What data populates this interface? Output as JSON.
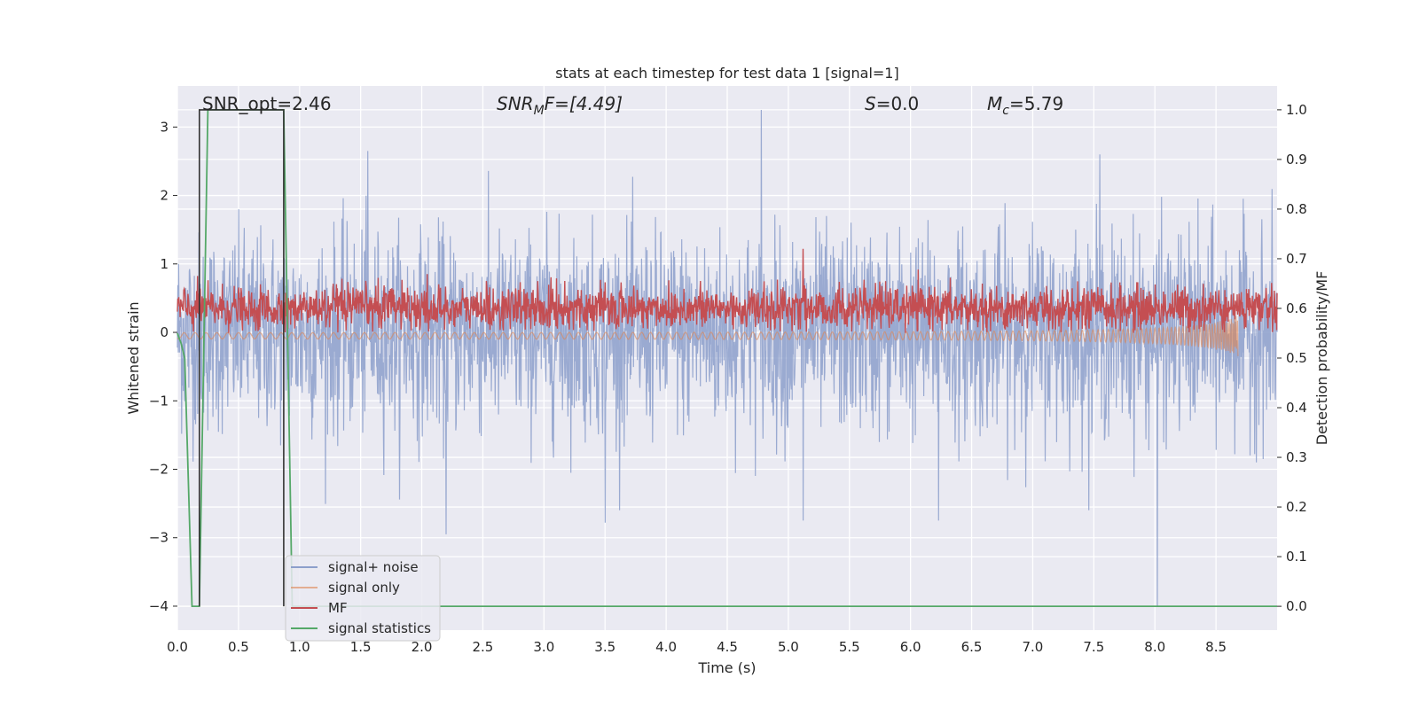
{
  "chart_data": {
    "type": "line",
    "title": "stats at each timestep for test data 1 [signal=1]",
    "xlabel": "Time (s)",
    "ylabel_left": "Whitened strain",
    "ylabel_right": "Detection probability/MF",
    "xlim": [
      0.0,
      9.0
    ],
    "ylim_left": [
      -4.35,
      3.6
    ],
    "ylim_right": [
      -0.048,
      1.048
    ],
    "x_ticks": [
      0.0,
      0.5,
      1.0,
      1.5,
      2.0,
      2.5,
      3.0,
      3.5,
      4.0,
      4.5,
      5.0,
      5.5,
      6.0,
      6.5,
      7.0,
      7.5,
      8.0,
      8.5
    ],
    "x_tick_labels": [
      "0.0",
      "0.5",
      "1.0",
      "1.5",
      "2.0",
      "2.5",
      "3.0",
      "3.5",
      "4.0",
      "4.5",
      "5.0",
      "5.5",
      "6.0",
      "6.5",
      "7.0",
      "7.5",
      "8.0",
      "8.5"
    ],
    "y_left_ticks": [
      3,
      2,
      1,
      0,
      -1,
      -2,
      -3,
      -4
    ],
    "y_left_tick_labels": [
      "3",
      "2",
      "1",
      "0",
      "−1",
      "−2",
      "−3",
      "−4"
    ],
    "y_right_ticks": [
      1.0,
      0.9,
      0.8,
      0.7,
      0.6,
      0.5,
      0.4,
      0.3,
      0.2,
      0.1,
      0.0
    ],
    "y_right_tick_labels": [
      "1.0",
      "0.9",
      "0.8",
      "0.7",
      "0.6",
      "0.5",
      "0.4",
      "0.3",
      "0.2",
      "0.1",
      "0.0"
    ],
    "grid": true,
    "legend_position": "lower-left",
    "annotations": {
      "snr_opt": "SNR_opt=2.46",
      "snr_mf_base": "SNR",
      "snr_mf_sub": "M",
      "snr_mf_rest": "F=[4.49]",
      "s_var": "S",
      "s_rest": "=0.0",
      "mc_var": "M",
      "mc_sub": "c",
      "mc_rest": "=5.79"
    },
    "series": [
      {
        "name": "signal+ noise",
        "axis": "left",
        "color": "#8c9fcb",
        "note_style": "dense noise, amplitude ~ +/-1.5 with spikes",
        "x_range": [
          0.0,
          9.0
        ],
        "spikes": [
          {
            "x": 4.78,
            "y": 3.25
          },
          {
            "x": 8.02,
            "y": -4.0
          },
          {
            "x": 2.2,
            "y": -2.95
          },
          {
            "x": 3.5,
            "y": -2.78
          },
          {
            "x": 5.12,
            "y": -2.75
          },
          {
            "x": 6.23,
            "y": -2.75
          },
          {
            "x": 1.56,
            "y": 2.65
          },
          {
            "x": 7.55,
            "y": 2.6
          }
        ]
      },
      {
        "name": "signal only",
        "axis": "left",
        "color": "#dd8452",
        "note_style": "chirp around 0, small amplitude, growing near end",
        "x_range": [
          0.0,
          8.68
        ],
        "end_amplitude": 0.28
      },
      {
        "name": "MF",
        "axis": "right",
        "color": "#c44e52",
        "baseline": 0.6,
        "range": [
          0.55,
          0.68
        ],
        "peak": {
          "x": 5.12,
          "y": 0.72
        }
      },
      {
        "name": "signal statistics",
        "axis": "right",
        "color": "#55a868",
        "x": [
          0.0,
          0.03,
          0.06,
          0.12,
          0.18,
          0.25,
          0.3,
          0.87,
          0.94,
          9.0
        ],
        "y": [
          0.55,
          0.53,
          0.5,
          0.0,
          0.0,
          1.0,
          1.0,
          1.0,
          0.0,
          0.0
        ]
      },
      {
        "name": "",
        "axis": "right",
        "color": "#333333",
        "role": "auxiliary step line",
        "x": [
          0.18,
          0.18,
          0.2,
          0.2,
          0.87,
          0.87
        ],
        "y": [
          0.0,
          1.0,
          1.0,
          1.0,
          1.0,
          0.0
        ]
      }
    ]
  }
}
